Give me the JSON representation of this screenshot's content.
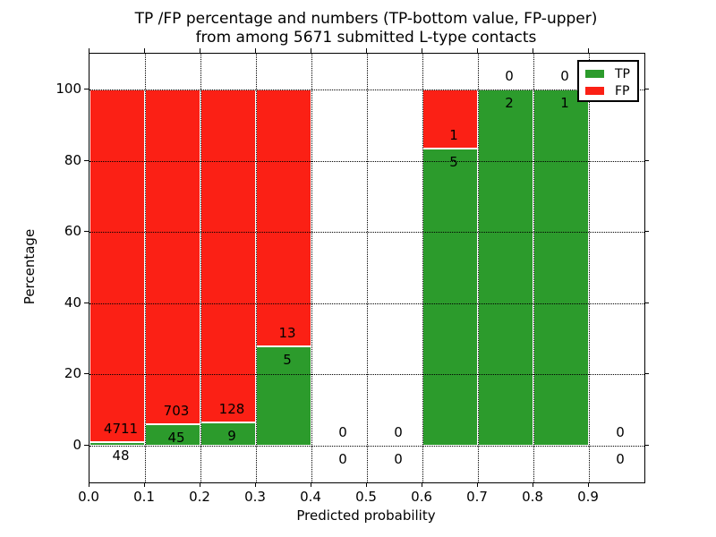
{
  "title": {
    "line1": "TP /FP percentage and numbers (TP-bottom value, FP-upper)",
    "line2": "from among 5671 submitted L-type contacts"
  },
  "axes": {
    "xlabel": "Predicted probability",
    "ylabel": "Percentage",
    "xticks": [
      "0.0",
      "0.1",
      "0.2",
      "0.3",
      "0.4",
      "0.5",
      "0.6",
      "0.7",
      "0.8",
      "0.9"
    ],
    "yticks": [
      0,
      20,
      40,
      60,
      80,
      100
    ],
    "xlim": [
      0.0,
      1.0
    ],
    "ylim": [
      -10.3,
      110.1
    ],
    "grid": "dotted, drawn over bars"
  },
  "legend": {
    "position": "upper right",
    "entries": [
      {
        "label": "TP",
        "color": "#2c9b2c"
      },
      {
        "label": "FP",
        "color": "#fb2015"
      }
    ]
  },
  "colors": {
    "tp": "#2c9b2c",
    "fp": "#fb2015",
    "bar_edge": "#ffffff",
    "text": "#000000",
    "background": "#ffffff"
  },
  "chart_data": {
    "type": "bar",
    "stacked": true,
    "note": "stacked to 100% per bin; TP count labeled below TP/FP boundary, FP count above it",
    "total_submitted": 5671,
    "bin_width": 0.1,
    "categories": [
      "0.0-0.1",
      "0.1-0.2",
      "0.2-0.3",
      "0.3-0.4",
      "0.4-0.5",
      "0.5-0.6",
      "0.6-0.7",
      "0.7-0.8",
      "0.8-0.9",
      "0.9-1.0"
    ],
    "bins": [
      {
        "range": [
          0.0,
          0.1
        ],
        "tp": 48,
        "fp": 4711,
        "tp_pct": 1.01,
        "fp_pct": 98.99
      },
      {
        "range": [
          0.1,
          0.2
        ],
        "tp": 45,
        "fp": 703,
        "tp_pct": 6.02,
        "fp_pct": 93.98
      },
      {
        "range": [
          0.2,
          0.3
        ],
        "tp": 9,
        "fp": 128,
        "tp_pct": 6.57,
        "fp_pct": 93.43
      },
      {
        "range": [
          0.3,
          0.4
        ],
        "tp": 5,
        "fp": 13,
        "tp_pct": 27.78,
        "fp_pct": 72.22
      },
      {
        "range": [
          0.4,
          0.5
        ],
        "tp": 0,
        "fp": 0,
        "tp_pct": 0,
        "fp_pct": 0
      },
      {
        "range": [
          0.5,
          0.6
        ],
        "tp": 0,
        "fp": 0,
        "tp_pct": 0,
        "fp_pct": 0
      },
      {
        "range": [
          0.6,
          0.7
        ],
        "tp": 5,
        "fp": 1,
        "tp_pct": 83.33,
        "fp_pct": 16.67
      },
      {
        "range": [
          0.7,
          0.8
        ],
        "tp": 2,
        "fp": 0,
        "tp_pct": 100,
        "fp_pct": 0
      },
      {
        "range": [
          0.8,
          0.9
        ],
        "tp": 1,
        "fp": 0,
        "tp_pct": 100,
        "fp_pct": 0
      },
      {
        "range": [
          0.9,
          1.0
        ],
        "tp": 0,
        "fp": 0,
        "tp_pct": 0,
        "fp_pct": 0
      }
    ],
    "series": [
      {
        "name": "TP",
        "counts": [
          48,
          45,
          9,
          5,
          0,
          0,
          5,
          2,
          1,
          0
        ],
        "percent": [
          1.01,
          6.02,
          6.57,
          27.78,
          0,
          0,
          83.33,
          100,
          100,
          0
        ]
      },
      {
        "name": "FP",
        "counts": [
          4711,
          703,
          128,
          13,
          0,
          0,
          1,
          0,
          0,
          0
        ],
        "percent": [
          98.99,
          93.98,
          93.43,
          72.22,
          0,
          0,
          16.67,
          0,
          0,
          0
        ]
      }
    ]
  }
}
